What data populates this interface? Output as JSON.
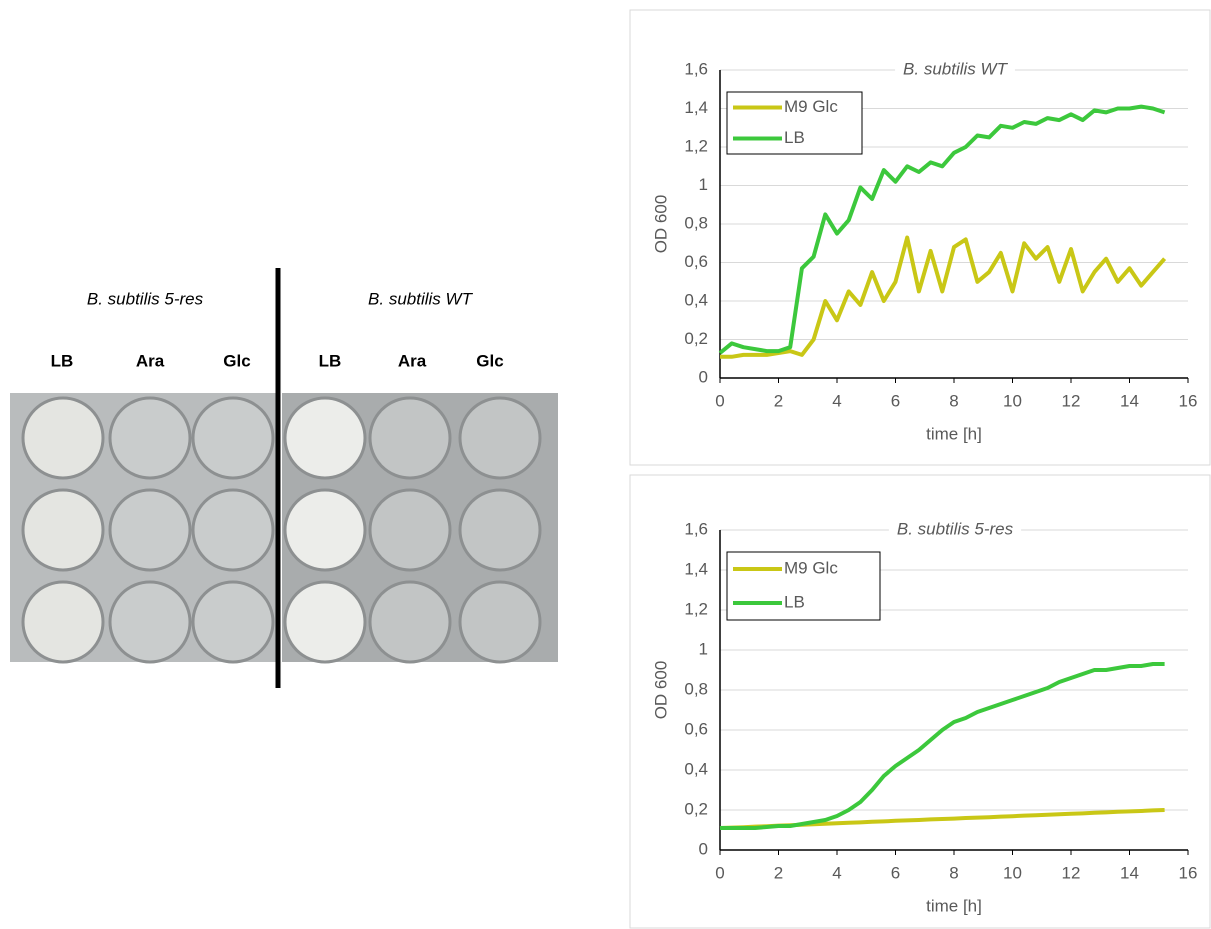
{
  "plate": {
    "groups": [
      {
        "title": "B. subtilis 5-res",
        "columns": [
          "LB",
          "Ara",
          "Glc"
        ]
      },
      {
        "title": "B. subtilis WT",
        "columns": [
          "LB",
          "Ara",
          "Glc"
        ]
      }
    ]
  },
  "chart_data": [
    {
      "type": "line",
      "title": "B. subtilis WT",
      "x_label": "time [h]",
      "y_label": "OD 600",
      "x": [
        0,
        0.4,
        0.8,
        1.2,
        1.6,
        2.0,
        2.4,
        2.8,
        3.2,
        3.6,
        4.0,
        4.4,
        4.8,
        5.2,
        5.6,
        6.0,
        6.4,
        6.8,
        7.2,
        7.6,
        8.0,
        8.4,
        8.8,
        9.2,
        9.6,
        10.0,
        10.4,
        10.8,
        11.2,
        11.6,
        12.0,
        12.4,
        12.8,
        13.2,
        13.6,
        14.0,
        14.4,
        14.8,
        15.2
      ],
      "series": [
        {
          "name": "M9 Glc",
          "color": "#c9c716",
          "values": [
            0.11,
            0.11,
            0.12,
            0.12,
            0.12,
            0.13,
            0.14,
            0.12,
            0.2,
            0.4,
            0.3,
            0.45,
            0.38,
            0.55,
            0.4,
            0.5,
            0.73,
            0.45,
            0.66,
            0.45,
            0.68,
            0.72,
            0.5,
            0.55,
            0.65,
            0.45,
            0.7,
            0.62,
            0.68,
            0.5,
            0.67,
            0.45,
            0.55,
            0.62,
            0.5,
            0.57,
            0.48,
            0.55,
            0.62
          ]
        },
        {
          "name": "LB",
          "color": "#3cc83c",
          "values": [
            0.13,
            0.18,
            0.16,
            0.15,
            0.14,
            0.14,
            0.16,
            0.57,
            0.63,
            0.85,
            0.75,
            0.82,
            0.99,
            0.93,
            1.08,
            1.02,
            1.1,
            1.07,
            1.12,
            1.1,
            1.17,
            1.2,
            1.26,
            1.25,
            1.31,
            1.3,
            1.33,
            1.32,
            1.35,
            1.34,
            1.37,
            1.34,
            1.39,
            1.38,
            1.4,
            1.4,
            1.41,
            1.4,
            1.38
          ]
        }
      ],
      "xlim": [
        0,
        16
      ],
      "xticks": [
        0,
        2,
        4,
        6,
        8,
        10,
        12,
        14,
        16
      ],
      "ylim": [
        0,
        1.6
      ],
      "yticks": [
        0,
        {
          "value": 0.2,
          "label": "0,2"
        },
        {
          "value": 0.4,
          "label": "0,4"
        },
        {
          "value": 0.6,
          "label": "0,6"
        },
        {
          "value": 0.8,
          "label": "0,8"
        },
        1,
        {
          "value": 1.2,
          "label": "1,2"
        },
        {
          "value": 1.4,
          "label": "1,4"
        },
        {
          "value": 1.6,
          "label": "1,6"
        }
      ],
      "grid": true
    },
    {
      "type": "line",
      "title": "B. subtilis 5-res",
      "x_label": "time [h]",
      "y_label": "OD 600",
      "x": [
        0,
        0.4,
        0.8,
        1.2,
        1.6,
        2.0,
        2.4,
        2.8,
        3.2,
        3.6,
        4.0,
        4.4,
        4.8,
        5.2,
        5.6,
        6.0,
        6.4,
        6.8,
        7.2,
        7.6,
        8.0,
        8.4,
        8.8,
        9.2,
        9.6,
        10.0,
        10.4,
        10.8,
        11.2,
        11.6,
        12.0,
        12.4,
        12.8,
        13.2,
        13.6,
        14.0,
        14.4,
        14.8,
        15.2
      ],
      "series": [
        {
          "name": "M9 Glc",
          "color": "#c9c716",
          "values": [
            0.11,
            0.112,
            0.114,
            0.117,
            0.119,
            0.122,
            0.124,
            0.126,
            0.129,
            0.131,
            0.134,
            0.136,
            0.138,
            0.141,
            0.143,
            0.146,
            0.148,
            0.15,
            0.153,
            0.155,
            0.157,
            0.16,
            0.162,
            0.164,
            0.167,
            0.169,
            0.172,
            0.174,
            0.176,
            0.179,
            0.181,
            0.183,
            0.186,
            0.188,
            0.191,
            0.193,
            0.195,
            0.198,
            0.2
          ]
        },
        {
          "name": "LB",
          "color": "#3cc83c",
          "values": [
            0.11,
            0.11,
            0.11,
            0.11,
            0.115,
            0.12,
            0.12,
            0.13,
            0.14,
            0.15,
            0.17,
            0.2,
            0.24,
            0.3,
            0.37,
            0.42,
            0.46,
            0.5,
            0.55,
            0.6,
            0.64,
            0.66,
            0.69,
            0.71,
            0.73,
            0.75,
            0.77,
            0.79,
            0.81,
            0.84,
            0.86,
            0.88,
            0.9,
            0.9,
            0.91,
            0.92,
            0.92,
            0.93,
            0.93
          ]
        }
      ],
      "xlim": [
        0,
        16
      ],
      "xticks": [
        0,
        2,
        4,
        6,
        8,
        10,
        12,
        14,
        16
      ],
      "ylim": [
        0,
        1.6
      ],
      "yticks": [
        0,
        {
          "value": 0.2,
          "label": "0,2"
        },
        {
          "value": 0.4,
          "label": "0,4"
        },
        {
          "value": 0.6,
          "label": "0,6"
        },
        {
          "value": 0.8,
          "label": "0,8"
        },
        1,
        {
          "value": 1.2,
          "label": "1,2"
        },
        {
          "value": 1.4,
          "label": "1,4"
        },
        {
          "value": 1.6,
          "label": "1,6"
        }
      ],
      "grid": true
    }
  ]
}
